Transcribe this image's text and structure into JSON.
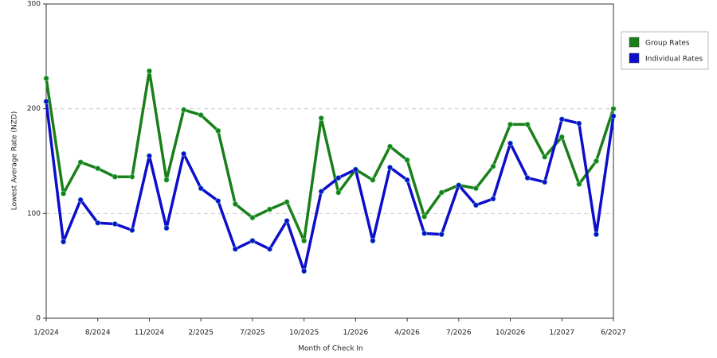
{
  "chart_data": {
    "type": "line",
    "x_label": "Month of Check In",
    "y_label": "Lowest Average Rate (NZD)",
    "categories": [
      "1/2024",
      null,
      null,
      "8/2024",
      null,
      null,
      "11/2024",
      null,
      null,
      "2/2025",
      null,
      null,
      "7/2025",
      null,
      null,
      "10/2025",
      null,
      null,
      "1/2026",
      null,
      null,
      "4/2026",
      null,
      null,
      "7/2026",
      null,
      null,
      "10/2026",
      null,
      null,
      "1/2027",
      null,
      null,
      "6/2027"
    ],
    "series": [
      {
        "name": "Group Rates",
        "color": "#1a7f1a",
        "values": [
          229,
          119,
          149,
          143,
          135,
          135,
          236,
          132,
          199,
          194,
          179,
          109,
          96,
          104,
          111,
          74,
          191,
          120,
          142,
          132,
          164,
          151,
          97,
          120,
          127,
          124,
          145,
          185,
          185,
          154,
          173,
          128,
          150,
          200
        ]
      },
      {
        "name": "Individual Rates",
        "color": "#0d0dcc",
        "values": [
          207,
          73,
          113,
          91,
          90,
          84,
          155,
          86,
          157,
          124,
          112,
          66,
          74,
          66,
          93,
          45,
          121,
          134,
          142,
          74,
          144,
          132,
          81,
          80,
          127,
          108,
          114,
          167,
          134,
          130,
          190,
          186,
          80,
          193
        ]
      }
    ],
    "ylim": [
      0,
      300
    ],
    "yticks": [
      0,
      100,
      200,
      300
    ],
    "grid": true,
    "legend": "right"
  }
}
